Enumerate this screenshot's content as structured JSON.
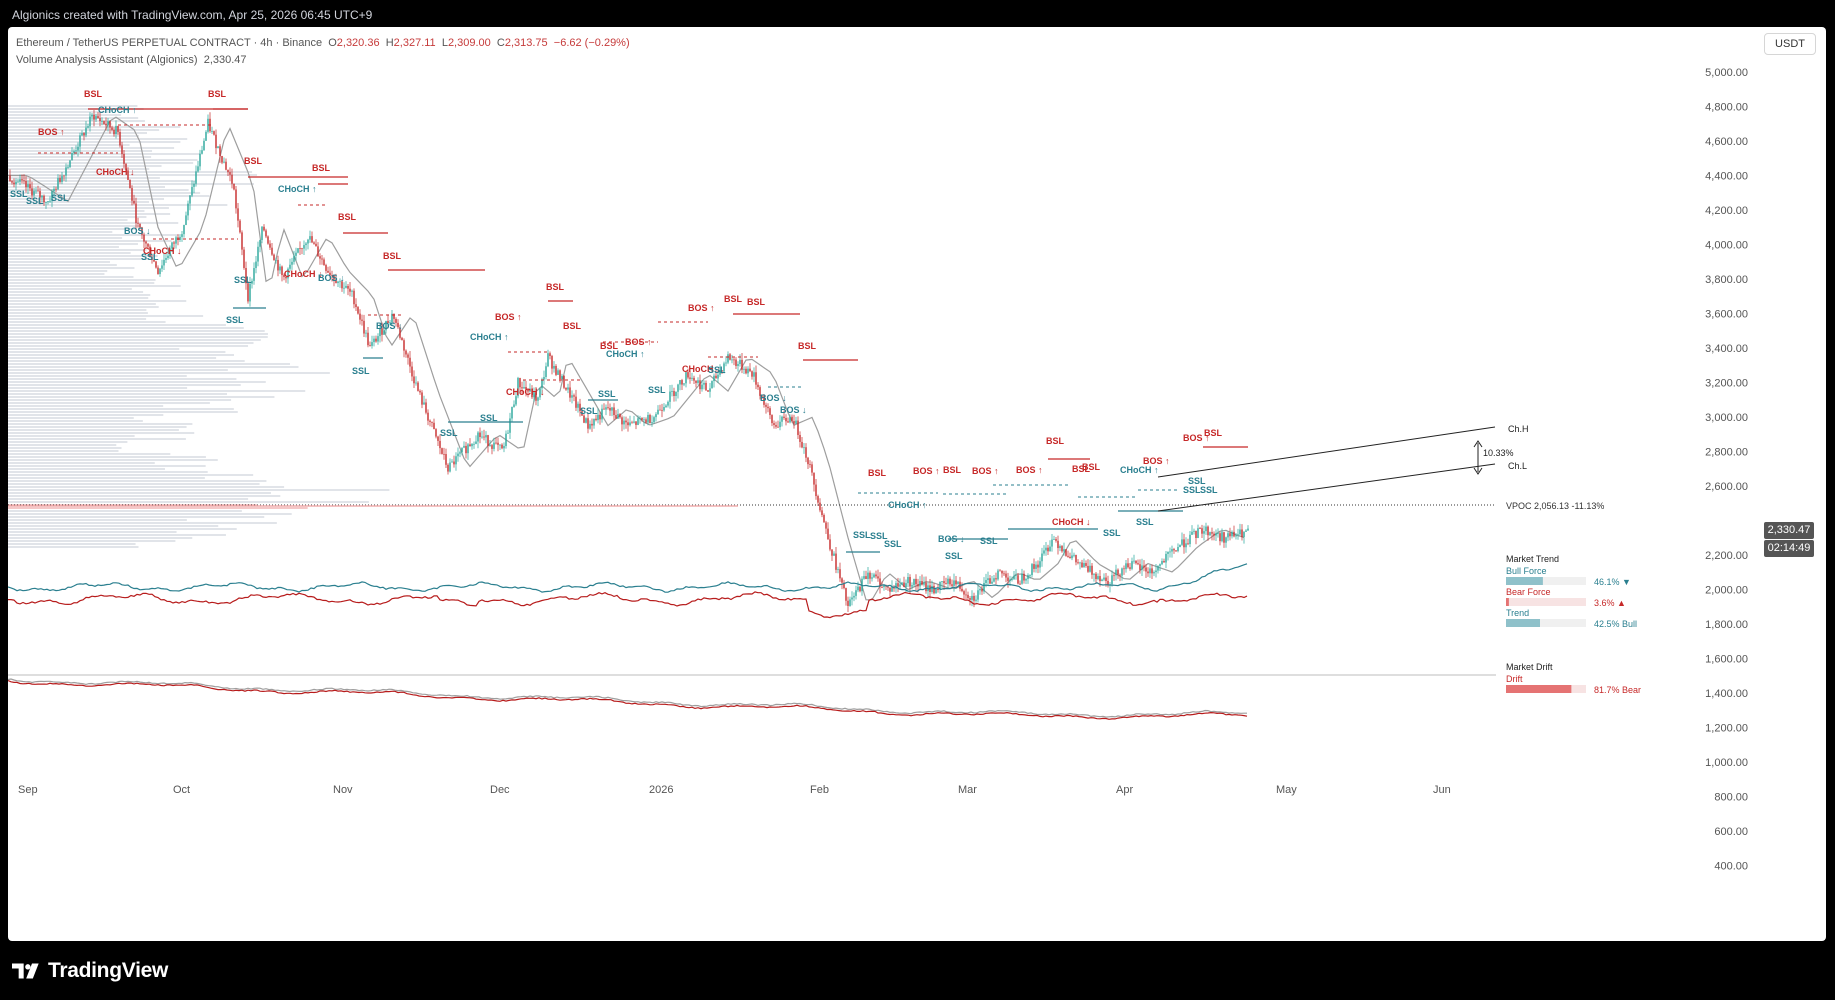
{
  "header_text": "Algionics created with TradingView.com, Apr 25, 2026 06:45 UTC+9",
  "brand": "TradingView",
  "legend": {
    "symbol": "Ethereum / TetherUS PERPETUAL CONTRACT · 4h · Binance",
    "open_label": "O",
    "open": "2,320.36",
    "high_label": "H",
    "high": "2,327.11",
    "low_label": "L",
    "low": "2,309.00",
    "close_label": "C",
    "close": "2,313.75",
    "change": "−6.62 (−0.29%)",
    "indicator": "Volume Analysis Assistant (Algionics)",
    "indicator_value": "2,330.47"
  },
  "currency_button": "USDT",
  "price_axis": [
    "5,000.00",
    "4,800.00",
    "4,600.00",
    "4,400.00",
    "4,200.00",
    "4,000.00",
    "3,800.00",
    "3,600.00",
    "3,400.00",
    "3,200.00",
    "3,000.00",
    "2,800.00",
    "2,600.00",
    "2,200.00",
    "2,000.00",
    "1,800.00",
    "1,600.00",
    "1,400.00",
    "1,200.00",
    "1,000.00",
    "800.00",
    "600.00",
    "400.00"
  ],
  "last_price": "2,330.47",
  "countdown": "02:14:49",
  "time_axis": [
    "Sep",
    "Oct",
    "Nov",
    "Dec",
    "2026",
    "Feb",
    "Mar",
    "Apr",
    "May",
    "Jun"
  ],
  "vpoc": "VPOC 2,056.13  -11.13%",
  "channel": {
    "high": "Ch.H",
    "low": "Ch.L",
    "pct": "10.33%"
  },
  "market_trend": {
    "title": "Market Trend",
    "bull_label": "Bull Force",
    "bull_value": "46.1%",
    "bull_pct": 46.1,
    "bear_label": "Bear Force",
    "bear_value": "3.6%",
    "bear_pct": 3.6,
    "trend_label": "Trend",
    "trend_value": "42.5% Bull",
    "trend_pct": 42.5
  },
  "market_drift": {
    "title": "Market Drift",
    "drift_label": "Drift",
    "drift_value": "81.7% Bear",
    "drift_pct": 81.7
  },
  "structure_labels": [
    {
      "t": "BSL",
      "c": "red"
    },
    {
      "t": "CHoCH ↑",
      "c": "teal"
    },
    {
      "t": "BOS ↑",
      "c": "red"
    },
    {
      "t": "BSL",
      "c": "red"
    },
    {
      "t": "CHoCH ↓",
      "c": "red"
    },
    {
      "t": "SSL",
      "c": "teal"
    },
    {
      "t": "SSL",
      "c": "teal"
    },
    {
      "t": "SSL",
      "c": "teal"
    },
    {
      "t": "BSL",
      "c": "red"
    },
    {
      "t": "CHoCH ↑",
      "c": "teal"
    },
    {
      "t": "BSL",
      "c": "red"
    },
    {
      "t": "BOS ↓",
      "c": "teal"
    },
    {
      "t": "CHoCH ↓",
      "c": "red"
    },
    {
      "t": "SSL",
      "c": "teal"
    },
    {
      "t": "BSL",
      "c": "red"
    },
    {
      "t": "BSL",
      "c": "red"
    },
    {
      "t": "CHoCH ↓",
      "c": "red"
    },
    {
      "t": "SSL",
      "c": "teal"
    },
    {
      "t": "BOS ↓",
      "c": "teal"
    },
    {
      "t": "SSL",
      "c": "teal"
    },
    {
      "t": "BOS ↓",
      "c": "teal"
    },
    {
      "t": "SSL",
      "c": "teal"
    },
    {
      "t": "BSL",
      "c": "red"
    },
    {
      "t": "BOS ↑",
      "c": "red"
    },
    {
      "t": "CHoCH ↑",
      "c": "teal"
    },
    {
      "t": "BSL",
      "c": "red"
    },
    {
      "t": "CHoCH ↓",
      "c": "red"
    },
    {
      "t": "SSL",
      "c": "teal"
    },
    {
      "t": "SSL",
      "c": "teal"
    },
    {
      "t": "BSL",
      "c": "red"
    },
    {
      "t": "BOS ↑",
      "c": "red"
    },
    {
      "t": "CHoCH ↑",
      "c": "teal"
    },
    {
      "t": "SSL",
      "c": "teal"
    },
    {
      "t": "SSL",
      "c": "teal"
    },
    {
      "t": "SSL",
      "c": "teal"
    },
    {
      "t": "BOS ↑",
      "c": "red"
    },
    {
      "t": "BSL",
      "c": "red"
    },
    {
      "t": "BSL",
      "c": "red"
    },
    {
      "t": "CHoCH ↓",
      "c": "red"
    },
    {
      "t": "BSL",
      "c": "red"
    },
    {
      "t": "BOS ↓",
      "c": "teal"
    },
    {
      "t": "BOS ↓",
      "c": "teal"
    },
    {
      "t": "SSL",
      "c": "teal"
    },
    {
      "t": "BSL",
      "c": "red"
    },
    {
      "t": "BSL",
      "c": "red"
    },
    {
      "t": "BOS ↑",
      "c": "red"
    },
    {
      "t": "BSL",
      "c": "red"
    },
    {
      "t": "CHoCH ↑",
      "c": "teal"
    },
    {
      "t": "SSL",
      "c": "teal"
    },
    {
      "t": "BOS ↓",
      "c": "teal"
    },
    {
      "t": "SSL",
      "c": "teal"
    },
    {
      "t": "BOS ↑",
      "c": "red"
    },
    {
      "t": "BOS ↑",
      "c": "red"
    },
    {
      "t": "SSL",
      "c": "teal"
    },
    {
      "t": "SSL",
      "c": "teal"
    },
    {
      "t": "SSL",
      "c": "teal"
    },
    {
      "t": "BSL",
      "c": "red"
    },
    {
      "t": "CHoCH ↓",
      "c": "red"
    },
    {
      "t": "BSL",
      "c": "red"
    },
    {
      "t": "CHoCH ↑",
      "c": "teal"
    },
    {
      "t": "SSL",
      "c": "teal"
    },
    {
      "t": "SSL",
      "c": "teal"
    },
    {
      "t": "SSL",
      "c": "teal"
    },
    {
      "t": "BOS ↑",
      "c": "red"
    },
    {
      "t": "BOS ↑",
      "c": "red"
    },
    {
      "t": "BSL",
      "c": "red"
    },
    {
      "t": "SSL",
      "c": "teal"
    },
    {
      "t": "SSL",
      "c": "teal"
    }
  ],
  "colors": {
    "bull": "#26a69a",
    "bear": "#c62828",
    "teal_line": "#2a7f8f",
    "red_line": "#b71c1c",
    "panel": "#ffffff"
  }
}
